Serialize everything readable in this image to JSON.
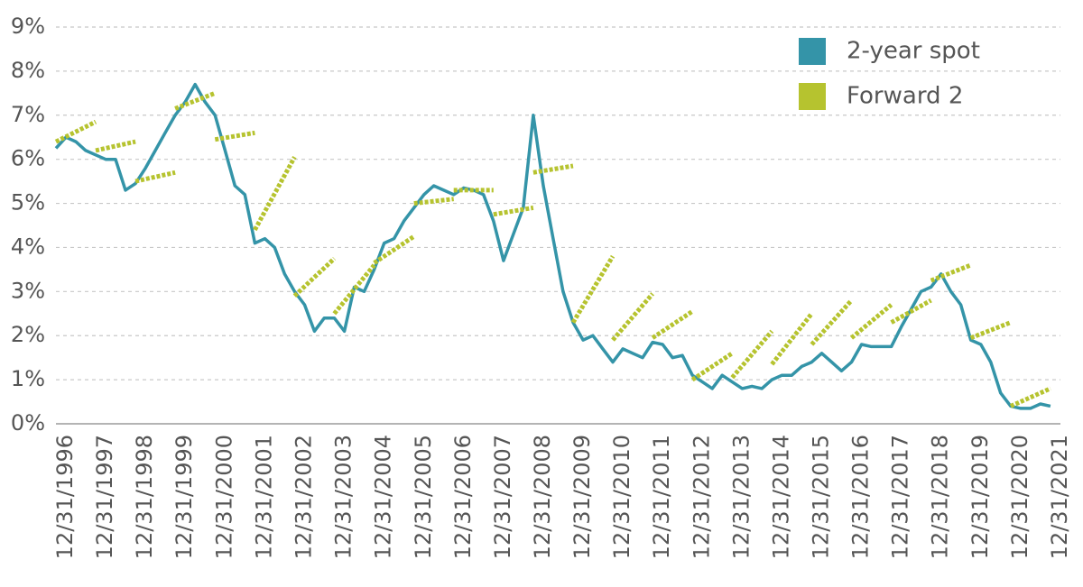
{
  "chart_data": {
    "type": "line",
    "ylim": [
      0,
      9
    ],
    "yticks": [
      {
        "value": 0,
        "label": "0%"
      },
      {
        "value": 1,
        "label": "1%"
      },
      {
        "value": 2,
        "label": "2%"
      },
      {
        "value": 3,
        "label": "3%"
      },
      {
        "value": 4,
        "label": "4%"
      },
      {
        "value": 5,
        "label": "5%"
      },
      {
        "value": 6,
        "label": "6%"
      },
      {
        "value": 7,
        "label": "7%"
      },
      {
        "value": 8,
        "label": "8%"
      },
      {
        "value": 9,
        "label": "9%"
      }
    ],
    "xlim": [
      "1996-09-30",
      "2021-12-31"
    ],
    "xticks": [
      {
        "value": "1996-12-31",
        "label": "12/31/1996"
      },
      {
        "value": "1997-12-31",
        "label": "12/31/1997"
      },
      {
        "value": "1998-12-31",
        "label": "12/31/1998"
      },
      {
        "value": "1999-12-31",
        "label": "12/31/1999"
      },
      {
        "value": "2000-12-31",
        "label": "12/31/2000"
      },
      {
        "value": "2001-12-31",
        "label": "12/31/2001"
      },
      {
        "value": "2002-12-31",
        "label": "12/31/2002"
      },
      {
        "value": "2003-12-31",
        "label": "12/31/2003"
      },
      {
        "value": "2004-12-31",
        "label": "12/31/2004"
      },
      {
        "value": "2005-12-31",
        "label": "12/31/2005"
      },
      {
        "value": "2006-12-31",
        "label": "12/31/2006"
      },
      {
        "value": "2007-12-31",
        "label": "12/31/2007"
      },
      {
        "value": "2008-12-31",
        "label": "12/31/2008"
      },
      {
        "value": "2009-12-31",
        "label": "12/31/2009"
      },
      {
        "value": "2010-12-31",
        "label": "12/31/2010"
      },
      {
        "value": "2011-12-31",
        "label": "12/31/2011"
      },
      {
        "value": "2012-12-31",
        "label": "12/31/2012"
      },
      {
        "value": "2013-12-31",
        "label": "12/31/2013"
      },
      {
        "value": "2014-12-31",
        "label": "12/31/2014"
      },
      {
        "value": "2015-12-31",
        "label": "12/31/2015"
      },
      {
        "value": "2016-12-31",
        "label": "12/31/2016"
      },
      {
        "value": "2017-12-31",
        "label": "12/31/2017"
      },
      {
        "value": "2018-12-31",
        "label": "12/31/2018"
      },
      {
        "value": "2019-12-31",
        "label": "12/31/2019"
      },
      {
        "value": "2020-12-31",
        "label": "12/31/2020"
      },
      {
        "value": "2021-12-31",
        "label": "12/31/2021"
      }
    ],
    "grid": true,
    "legend": "top-right",
    "series": [
      {
        "name": "2-year spot",
        "color": "#3494a8",
        "x": [
          "1996-09-30",
          "1996-12-31",
          "1997-03-31",
          "1997-06-30",
          "1997-09-30",
          "1997-12-31",
          "1998-03-31",
          "1998-06-30",
          "1998-09-30",
          "1998-12-31",
          "1999-03-31",
          "1999-06-30",
          "1999-09-30",
          "1999-12-31",
          "2000-03-31",
          "2000-06-30",
          "2000-09-30",
          "2000-12-31",
          "2001-03-31",
          "2001-06-30",
          "2001-09-30",
          "2001-12-31",
          "2002-03-31",
          "2002-06-30",
          "2002-09-30",
          "2002-12-31",
          "2003-03-31",
          "2003-06-30",
          "2003-09-30",
          "2003-12-31",
          "2004-03-31",
          "2004-06-30",
          "2004-09-30",
          "2004-12-31",
          "2005-03-31",
          "2005-06-30",
          "2005-09-30",
          "2005-12-31",
          "2006-03-31",
          "2006-06-30",
          "2006-09-30",
          "2006-12-31",
          "2007-03-31",
          "2007-06-30",
          "2007-09-30",
          "2007-12-31",
          "2008-03-31",
          "2008-06-30",
          "2008-09-30",
          "2008-12-31",
          "2009-03-31",
          "2009-06-30",
          "2009-09-30",
          "2009-12-31",
          "2010-03-31",
          "2010-06-30",
          "2010-09-30",
          "2010-12-31",
          "2011-03-31",
          "2011-06-30",
          "2011-09-30",
          "2011-12-31",
          "2012-03-31",
          "2012-06-30",
          "2012-09-30",
          "2012-12-31",
          "2013-03-31",
          "2013-06-30",
          "2013-09-30",
          "2013-12-31",
          "2014-03-31",
          "2014-06-30",
          "2014-09-30",
          "2014-12-31",
          "2015-03-31",
          "2015-06-30",
          "2015-09-30",
          "2015-12-31",
          "2016-03-31",
          "2016-06-30",
          "2016-09-30",
          "2016-12-31",
          "2017-03-31",
          "2017-06-30",
          "2017-09-30",
          "2017-12-31",
          "2018-03-31",
          "2018-06-30",
          "2018-09-30",
          "2018-12-31",
          "2019-03-31",
          "2019-06-30",
          "2019-09-30",
          "2019-12-31",
          "2020-03-31",
          "2020-06-30",
          "2020-09-30",
          "2020-12-31",
          "2021-03-31",
          "2021-06-30",
          "2021-09-30"
        ],
        "values": [
          6.25,
          6.5,
          6.4,
          6.2,
          6.1,
          6.0,
          6.0,
          5.3,
          5.45,
          5.8,
          6.2,
          6.6,
          7.0,
          7.3,
          7.7,
          7.3,
          7.0,
          6.2,
          5.4,
          5.2,
          4.1,
          4.2,
          4.0,
          3.4,
          3.0,
          2.7,
          2.1,
          2.4,
          2.4,
          2.1,
          3.1,
          3.0,
          3.5,
          4.1,
          4.2,
          4.6,
          4.9,
          5.2,
          5.4,
          5.3,
          5.2,
          5.35,
          5.3,
          5.2,
          4.6,
          3.7,
          4.3,
          4.9,
          7.0,
          5.4,
          4.2,
          3.0,
          2.3,
          1.9,
          2.0,
          1.7,
          1.4,
          1.7,
          1.6,
          1.5,
          1.85,
          1.8,
          1.5,
          1.55,
          1.1,
          0.95,
          0.8,
          1.1,
          0.95,
          0.8,
          0.85,
          0.8,
          1.0,
          1.1,
          1.1,
          1.3,
          1.4,
          1.6,
          1.4,
          1.2,
          1.4,
          1.8,
          1.75,
          1.75,
          1.75,
          2.2,
          2.6,
          3.0,
          3.1,
          3.4,
          3.0,
          2.7,
          1.9,
          1.8,
          1.4,
          0.7,
          0.4,
          0.35,
          0.35,
          0.45,
          0.4
        ]
      },
      {
        "name": "Forward 2",
        "color": "#b6c32f",
        "segments": [
          {
            "x": [
              "1996-09-30",
              "1997-09-30"
            ],
            "values": [
              6.4,
              6.85
            ]
          },
          {
            "x": [
              "1997-09-30",
              "1998-09-30"
            ],
            "values": [
              6.2,
              6.4
            ]
          },
          {
            "x": [
              "1998-09-30",
              "1999-09-30"
            ],
            "values": [
              5.5,
              5.7
            ]
          },
          {
            "x": [
              "1999-09-30",
              "2000-09-30"
            ],
            "values": [
              7.15,
              7.5
            ]
          },
          {
            "x": [
              "2000-09-30",
              "2001-09-30"
            ],
            "values": [
              6.45,
              6.6
            ]
          },
          {
            "x": [
              "2001-09-30",
              "2002-09-30"
            ],
            "values": [
              4.4,
              6.05
            ]
          },
          {
            "x": [
              "2002-09-30",
              "2003-09-30"
            ],
            "values": [
              2.9,
              3.75
            ]
          },
          {
            "x": [
              "2003-09-30",
              "2004-09-30"
            ],
            "values": [
              2.5,
              3.6
            ]
          },
          {
            "x": [
              "2004-09-30",
              "2005-09-30"
            ],
            "values": [
              3.65,
              4.25
            ]
          },
          {
            "x": [
              "2005-09-30",
              "2006-09-30"
            ],
            "values": [
              5.0,
              5.1
            ]
          },
          {
            "x": [
              "2006-09-30",
              "2007-09-30"
            ],
            "values": [
              5.3,
              5.3
            ]
          },
          {
            "x": [
              "2007-09-30",
              "2008-09-30"
            ],
            "values": [
              4.75,
              4.9
            ]
          },
          {
            "x": [
              "2008-09-30",
              "2009-09-30"
            ],
            "values": [
              5.7,
              5.85
            ]
          },
          {
            "x": [
              "2009-09-30",
              "2010-09-30"
            ],
            "values": [
              2.3,
              3.8
            ]
          },
          {
            "x": [
              "2010-09-30",
              "2011-09-30"
            ],
            "values": [
              1.9,
              2.95
            ]
          },
          {
            "x": [
              "2011-09-30",
              "2012-09-30"
            ],
            "values": [
              1.95,
              2.55
            ]
          },
          {
            "x": [
              "2012-09-30",
              "2013-09-30"
            ],
            "values": [
              1.0,
              1.6
            ]
          },
          {
            "x": [
              "2013-09-30",
              "2014-09-30"
            ],
            "values": [
              1.05,
              2.1
            ]
          },
          {
            "x": [
              "2014-09-30",
              "2015-09-30"
            ],
            "values": [
              1.35,
              2.5
            ]
          },
          {
            "x": [
              "2015-09-30",
              "2016-09-30"
            ],
            "values": [
              1.8,
              2.8
            ]
          },
          {
            "x": [
              "2016-09-30",
              "2017-09-30"
            ],
            "values": [
              1.95,
              2.7
            ]
          },
          {
            "x": [
              "2017-09-30",
              "2018-09-30"
            ],
            "values": [
              2.3,
              2.8
            ]
          },
          {
            "x": [
              "2018-09-30",
              "2019-09-30"
            ],
            "values": [
              3.25,
              3.6
            ]
          },
          {
            "x": [
              "2019-09-30",
              "2020-09-30"
            ],
            "values": [
              1.95,
              2.3
            ]
          },
          {
            "x": [
              "2020-09-30",
              "2021-09-30"
            ],
            "values": [
              0.4,
              0.8
            ]
          }
        ]
      }
    ]
  }
}
